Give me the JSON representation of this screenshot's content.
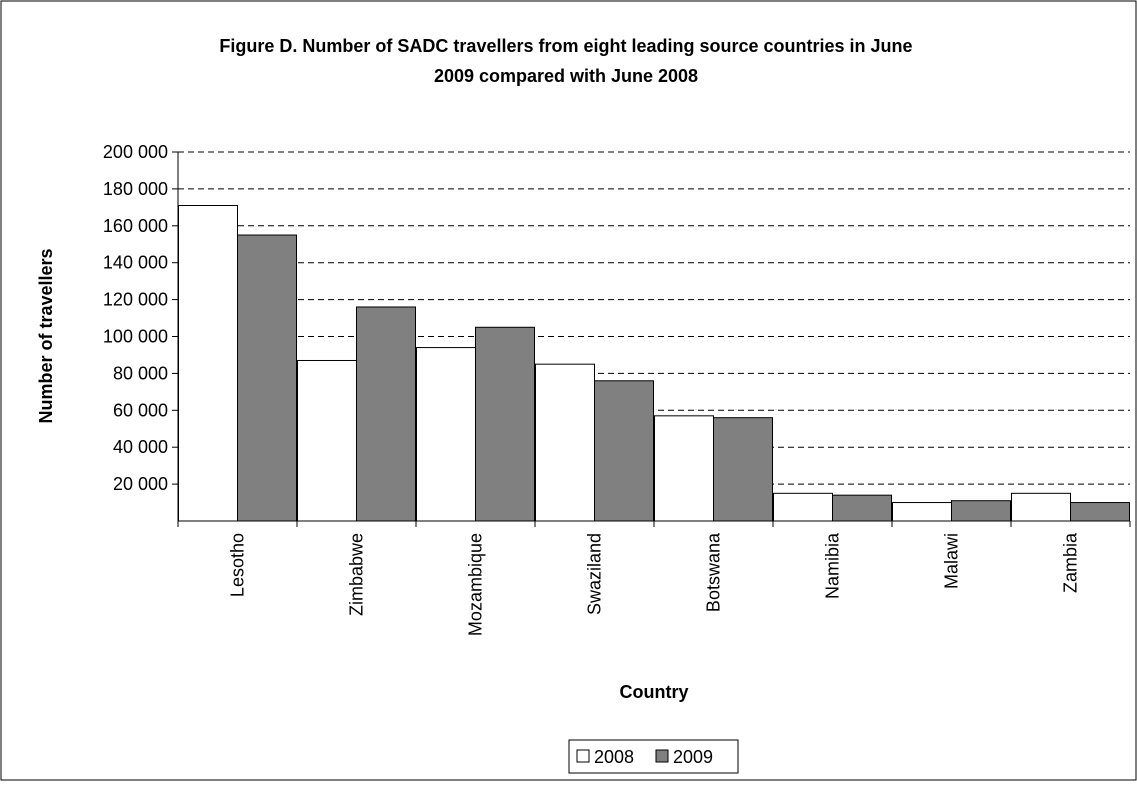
{
  "chart_data": {
    "type": "bar",
    "title_line1": "Figure D. Number of SADC travellers from eight leading source countries in June",
    "title_line2": "2009 compared with June 2008",
    "xlabel": "Country",
    "ylabel": "Number of travellers",
    "categories": [
      "Lesotho",
      "Zimbabwe",
      "Mozambique",
      "Swaziland",
      "Botswana",
      "Namibia",
      "Malawi",
      "Zambia"
    ],
    "series": [
      {
        "name": "2008",
        "values": [
          171000,
          87000,
          94000,
          85000,
          57000,
          15000,
          10000,
          15000
        ],
        "color": "#ffffff"
      },
      {
        "name": "2009",
        "values": [
          155000,
          116000,
          105000,
          76000,
          56000,
          14000,
          11000,
          10000
        ],
        "color": "#808080"
      }
    ],
    "ylim": [
      0,
      200000
    ],
    "y_ticks": [
      {
        "value": 20000,
        "label": "20 000"
      },
      {
        "value": 40000,
        "label": "40 000"
      },
      {
        "value": 60000,
        "label": "60 000"
      },
      {
        "value": 80000,
        "label": "80 000"
      },
      {
        "value": 100000,
        "label": "100 000"
      },
      {
        "value": 120000,
        "label": "120 000"
      },
      {
        "value": 140000,
        "label": "140 000"
      },
      {
        "value": 160000,
        "label": "160 000"
      },
      {
        "value": 180000,
        "label": "180 000"
      },
      {
        "value": 200000,
        "label": "200 000"
      }
    ],
    "grid": "horizontal dashed",
    "legend_position": "bottom"
  }
}
